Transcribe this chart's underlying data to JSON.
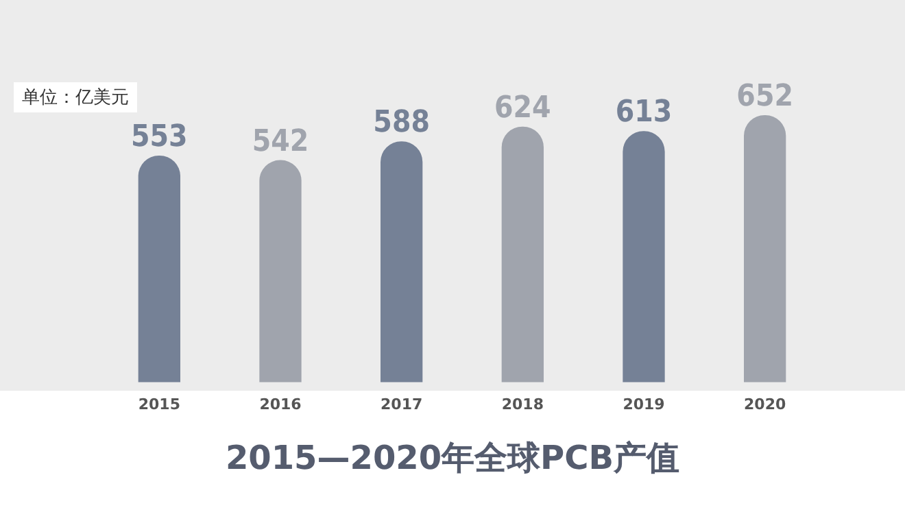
{
  "chart_data": {
    "type": "bar",
    "title": "2015—2020年全球PCB产值",
    "annotations": [
      "单位：亿美元"
    ],
    "categories": [
      "2015",
      "2016",
      "2017",
      "2018",
      "2019",
      "2020"
    ],
    "values": [
      553,
      542,
      588,
      624,
      613,
      652
    ],
    "colors": [
      "#758196",
      "#a0a4ad",
      "#758196",
      "#a0a4ad",
      "#758196",
      "#a0a4ad"
    ],
    "data_labels": true,
    "grid": false,
    "legend": false
  }
}
